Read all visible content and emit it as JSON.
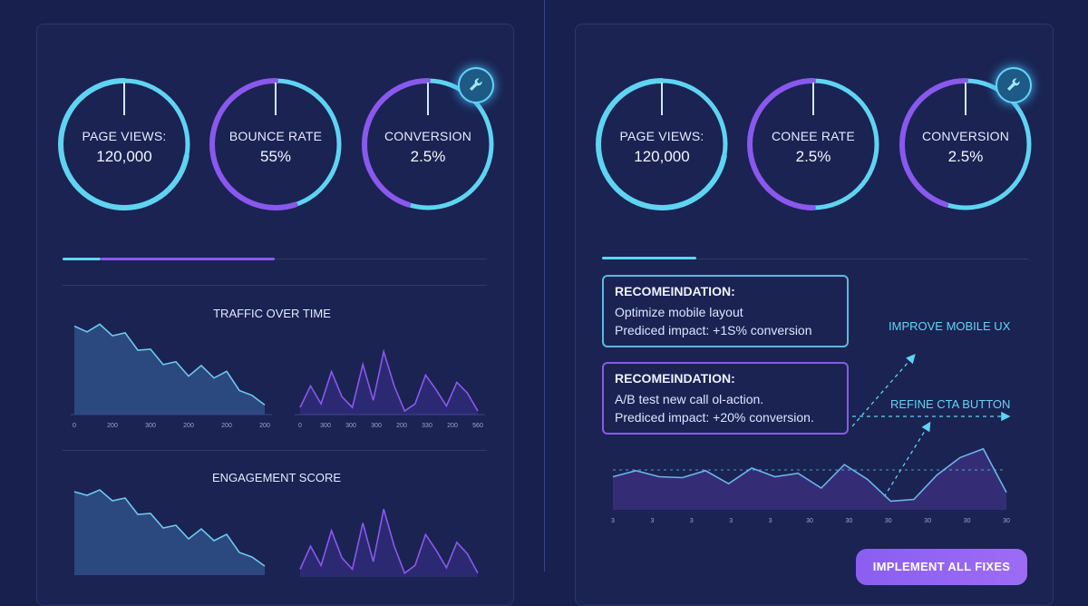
{
  "colors": {
    "background": "#18204d",
    "cyan": "#5fd4f2",
    "purple": "#8a58ee",
    "track": "#283163"
  },
  "left": {
    "gauges": [
      {
        "label": "PAGE VIEWS:",
        "value": "120,000",
        "fraction": 0.72,
        "color": "#5fd4f2"
      },
      {
        "label": "BOUNCE RATE",
        "value": "55%",
        "fraction": 0.55,
        "color": "#8a58ee"
      },
      {
        "label": "CONVERSION",
        "value": "2.5%",
        "fraction": 0.45,
        "color": "#8a58ee"
      }
    ],
    "traffic_title": "TRAFFIC OVER TIME",
    "engagement_title": "ENGAGEMENT SCORE"
  },
  "right": {
    "gauges": [
      {
        "label": "PAGE VIEWS:",
        "value": "120,000",
        "fraction": 0.72,
        "color": "#5fd4f2"
      },
      {
        "label": "CONEE RATE",
        "value": "2.5%",
        "fraction": 0.5,
        "color": "#8a58ee"
      },
      {
        "label": "CONVERSION",
        "value": "2.5%",
        "fraction": 0.45,
        "color": "#8a58ee"
      }
    ],
    "recommendations": [
      {
        "title": "RECOMEINDATION:",
        "line1": "Optimize mobile layout",
        "line2": "Prediced impact: +1S% conversion"
      },
      {
        "title": "RECOMEINDATION:",
        "line1": "A/B test new call ol-action.",
        "line2": "Prediced impact: +20% conversion."
      }
    ],
    "callout_mobile": "IMPROVE MOBILE UX",
    "callout_cta": "REFINE CTA BUTTON",
    "cta_button": "IMPLEMENT ALL FIXES"
  },
  "chart_data": [
    {
      "type": "area",
      "name": "traffic-left",
      "x_ticks": [
        "0",
        "200",
        "300",
        "200",
        "200",
        "200"
      ],
      "values": [
        92,
        86,
        94,
        82,
        85,
        67,
        68,
        52,
        55,
        40,
        51,
        38,
        45,
        25,
        20,
        10
      ]
    },
    {
      "type": "line",
      "name": "traffic-right",
      "x_ticks": [
        "0",
        "300",
        "300",
        "300",
        "200",
        "330",
        "200",
        "560"
      ],
      "values": [
        10,
        40,
        15,
        60,
        25,
        10,
        70,
        20,
        88,
        40,
        5,
        15,
        55,
        35,
        12,
        45,
        30,
        5
      ]
    },
    {
      "type": "area",
      "name": "engagement-left",
      "x_ticks": [],
      "values": [
        92,
        88,
        94,
        82,
        85,
        67,
        68,
        52,
        55,
        40,
        51,
        38,
        45,
        25,
        20,
        10
      ]
    },
    {
      "type": "line",
      "name": "engagement-right",
      "x_ticks": [],
      "values": [
        10,
        40,
        15,
        60,
        25,
        10,
        70,
        20,
        88,
        40,
        5,
        15,
        55,
        35,
        12,
        45,
        30,
        5
      ]
    },
    {
      "type": "area",
      "name": "forecast",
      "x_ticks": [
        "3",
        "3",
        "3",
        "3",
        "3",
        "30",
        "30",
        "30",
        "30",
        "30",
        "30"
      ],
      "values": [
        38,
        45,
        38,
        37,
        45,
        30,
        48,
        38,
        42,
        25,
        52,
        35,
        10,
        12,
        40,
        60,
        70,
        20
      ]
    }
  ]
}
